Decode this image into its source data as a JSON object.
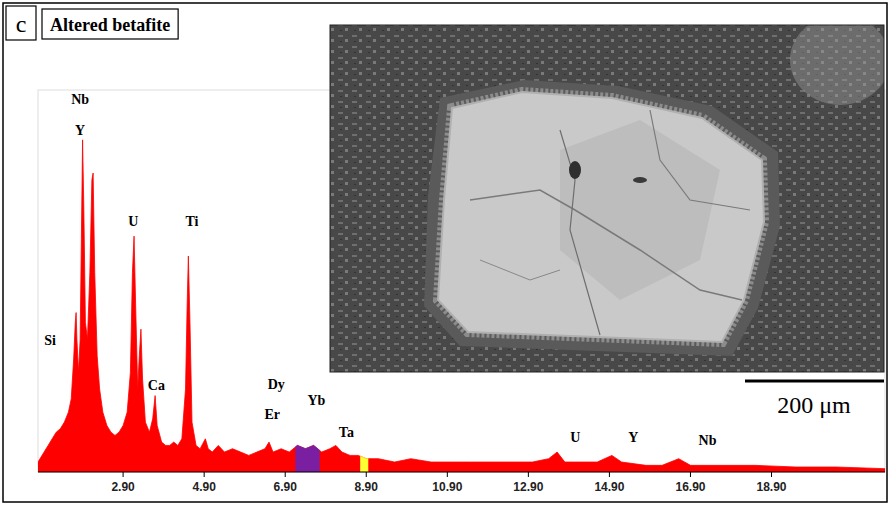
{
  "chart_data": {
    "type": "area",
    "panel_label": "c",
    "title": "Altered betafite",
    "inset_scale_bar": "200 μm",
    "color": "#ff0000",
    "xlim": [
      0.8,
      21.7
    ],
    "ylim": [
      0,
      115
    ],
    "xticks": [
      {
        "value": 2.9,
        "label": "2.90"
      },
      {
        "value": 4.9,
        "label": "4.90"
      },
      {
        "value": 6.9,
        "label": "6.90"
      },
      {
        "value": 8.9,
        "label": "8.90"
      },
      {
        "value": 10.9,
        "label": "10.90"
      },
      {
        "value": 12.9,
        "label": "12.90"
      },
      {
        "value": 14.9,
        "label": "14.90"
      },
      {
        "value": 16.9,
        "label": "16.90"
      },
      {
        "value": 18.9,
        "label": "18.90"
      }
    ],
    "tick_labels": "x",
    "grid": false,
    "x": [
      0.8,
      0.95,
      1.05,
      1.15,
      1.25,
      1.35,
      1.45,
      1.55,
      1.62,
      1.68,
      1.72,
      1.74,
      1.76,
      1.8,
      1.84,
      1.87,
      1.9,
      1.93,
      1.97,
      2.02,
      2.08,
      2.13,
      2.16,
      2.2,
      2.26,
      2.32,
      2.4,
      2.5,
      2.6,
      2.7,
      2.8,
      2.9,
      3.0,
      3.08,
      3.13,
      3.17,
      3.21,
      3.26,
      3.3,
      3.34,
      3.38,
      3.45,
      3.55,
      3.63,
      3.69,
      3.74,
      3.85,
      3.95,
      4.05,
      4.15,
      4.25,
      4.35,
      4.44,
      4.48,
      4.51,
      4.55,
      4.6,
      4.7,
      4.8,
      4.93,
      5.0,
      5.1,
      5.25,
      5.4,
      5.6,
      5.8,
      6.0,
      6.2,
      6.4,
      6.5,
      6.6,
      6.8,
      7.0,
      7.2,
      7.4,
      7.6,
      7.8,
      8.0,
      8.15,
      8.3,
      8.5,
      8.7,
      8.9,
      9.2,
      9.6,
      10.0,
      10.5,
      11.0,
      11.5,
      12.0,
      12.5,
      13.0,
      13.4,
      13.61,
      13.8,
      14.2,
      14.6,
      14.96,
      15.2,
      15.8,
      16.2,
      16.61,
      16.9,
      17.5,
      18.5,
      19.5,
      20.5,
      21.7
    ],
    "values": [
      3,
      6,
      8,
      10,
      12,
      13,
      15,
      18,
      22,
      34,
      45,
      48,
      40,
      30,
      40,
      70,
      100,
      80,
      45,
      40,
      60,
      88,
      90,
      60,
      35,
      25,
      18,
      14,
      12,
      11,
      12,
      14,
      18,
      30,
      60,
      71,
      50,
      25,
      35,
      43,
      28,
      15,
      12,
      16,
      23,
      14,
      9,
      8,
      8,
      9,
      8,
      10,
      25,
      50,
      65,
      45,
      15,
      8,
      7,
      10,
      7,
      6,
      8,
      6,
      7,
      6,
      5,
      6,
      7,
      9,
      6,
      7,
      6,
      8,
      7,
      8,
      6,
      7,
      8,
      6,
      5,
      5,
      4,
      4,
      3,
      4,
      3,
      3,
      3,
      3,
      3,
      3,
      4,
      6,
      3,
      3,
      3,
      5,
      3,
      2,
      2,
      4,
      2,
      2,
      2,
      1.5,
      1.5,
      1
    ],
    "highlight_ranges": [
      {
        "x": [
          7.15,
          7.75
        ],
        "color": "#7b1fa2"
      },
      {
        "x": [
          8.75,
          8.95
        ],
        "color": "#ffff33"
      }
    ],
    "annotations": [
      {
        "text": "Nb",
        "x": 1.84,
        "y": 110.8
      },
      {
        "text": "Y",
        "x": 1.84,
        "y": 101.5
      },
      {
        "text": "Si",
        "x": 1.1,
        "y": 38.3
      },
      {
        "text": "U",
        "x": 3.15,
        "y": 74
      },
      {
        "text": "Ca",
        "x": 3.72,
        "y": 24.7
      },
      {
        "text": "Ti",
        "x": 4.6,
        "y": 74
      },
      {
        "text": "Dy",
        "x": 6.68,
        "y": 25
      },
      {
        "text": "Er",
        "x": 6.58,
        "y": 16
      },
      {
        "text": "Yb",
        "x": 7.67,
        "y": 20.2
      },
      {
        "text": "Ta",
        "x": 8.41,
        "y": 10.5
      },
      {
        "text": "U",
        "x": 14.06,
        "y": 9
      },
      {
        "text": "Y",
        "x": 15.49,
        "y": 9
      },
      {
        "text": "Nb",
        "x": 17.32,
        "y": 8
      }
    ]
  }
}
